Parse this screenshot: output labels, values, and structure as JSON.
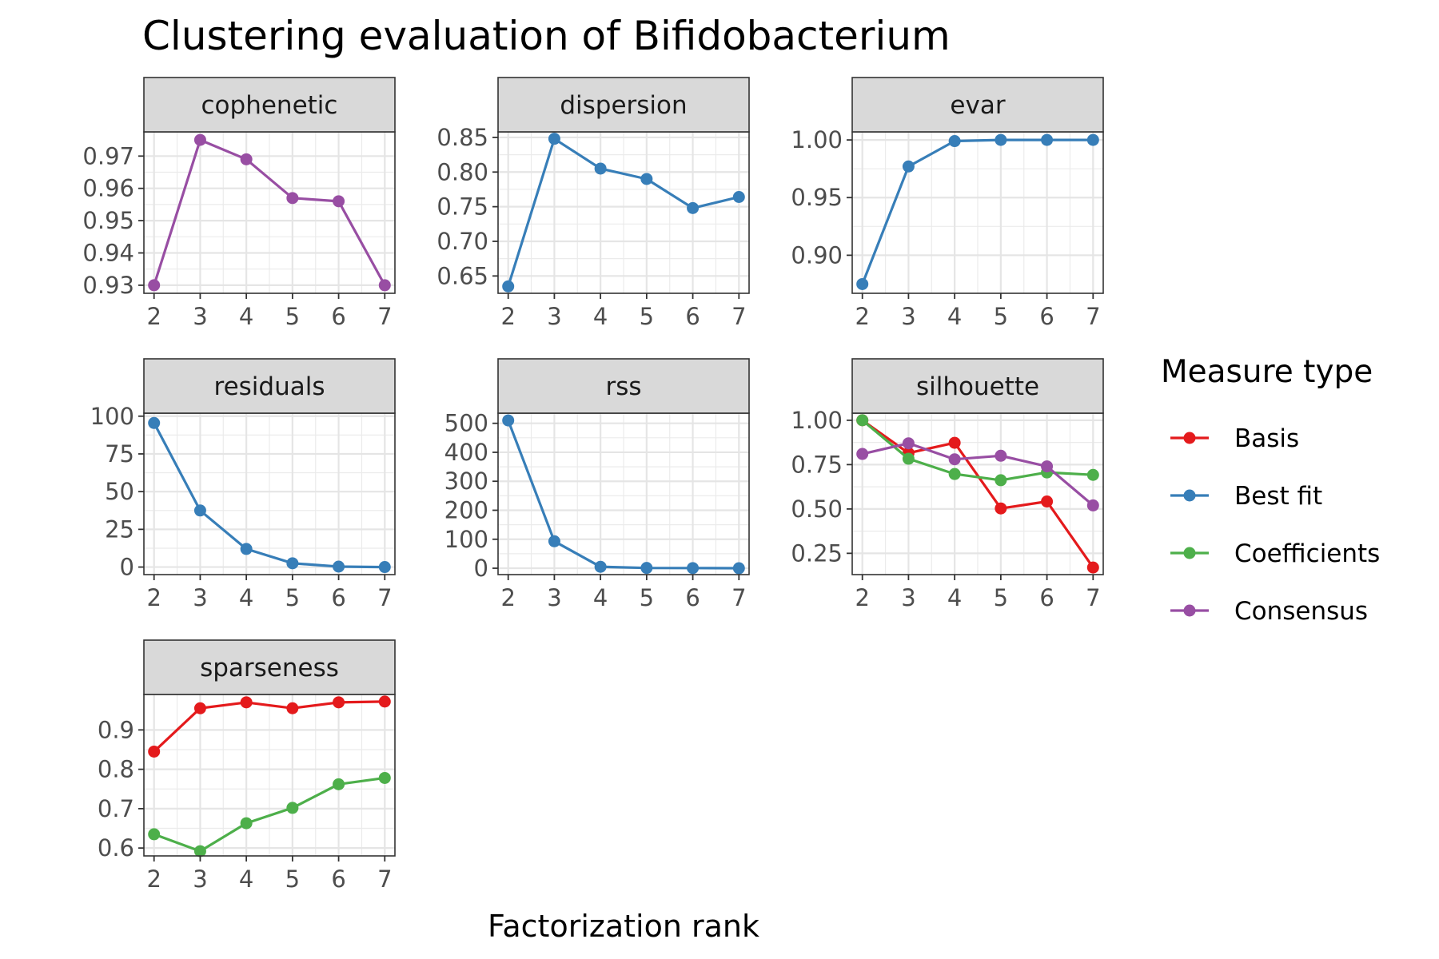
{
  "chart_data": {
    "type": "line",
    "title": "Clustering evaluation of Bifidobacterium",
    "xlabel": "Factorization rank",
    "ylabel": "",
    "x": [
      2,
      3,
      4,
      5,
      6,
      7
    ],
    "legend": {
      "title": "Measure type",
      "placement": "right",
      "items": [
        {
          "name": "Basis",
          "color": "#e41a1c"
        },
        {
          "name": "Best fit",
          "color": "#377eb8"
        },
        {
          "name": "Coefficients",
          "color": "#4daf4a"
        },
        {
          "name": "Consensus",
          "color": "#984ea3"
        }
      ]
    },
    "grid": true,
    "panels": [
      {
        "label": "cophenetic",
        "ylim": [
          0.9275,
          0.9775
        ],
        "yticks": [
          0.93,
          0.94,
          0.95,
          0.96,
          0.97
        ],
        "yticklabels": [
          "0.93",
          "0.94",
          "0.95",
          "0.96",
          "0.97"
        ],
        "series": [
          {
            "name": "Consensus",
            "values": [
              0.93,
              0.975,
              0.969,
              0.957,
              0.956,
              0.93
            ]
          }
        ]
      },
      {
        "label": "dispersion",
        "ylim": [
          0.625,
          0.858
        ],
        "yticks": [
          0.65,
          0.7,
          0.75,
          0.8,
          0.85
        ],
        "yticklabels": [
          "0.65",
          "0.70",
          "0.75",
          "0.80",
          "0.85"
        ],
        "series": [
          {
            "name": "Best fit",
            "values": [
              0.635,
              0.848,
              0.805,
              0.79,
              0.748,
              0.764
            ]
          }
        ]
      },
      {
        "label": "evar",
        "ylim": [
          0.867,
          1.007
        ],
        "yticks": [
          0.9,
          0.95,
          1.0
        ],
        "yticklabels": [
          "0.90",
          "0.95",
          "1.00"
        ],
        "series": [
          {
            "name": "Best fit",
            "values": [
              0.875,
              0.977,
              0.999,
              1.0,
              1.0,
              1.0
            ]
          }
        ]
      },
      {
        "label": "residuals",
        "ylim": [
          -5,
          102
        ],
        "yticks": [
          0,
          25,
          50,
          75,
          100
        ],
        "yticklabels": [
          "0",
          "25",
          "50",
          "75",
          "100"
        ],
        "series": [
          {
            "name": "Best fit",
            "values": [
              95.5,
              37.5,
              12,
              2.5,
              0.3,
              0
            ]
          }
        ]
      },
      {
        "label": "rss",
        "ylim": [
          -22,
          535
        ],
        "yticks": [
          0,
          100,
          200,
          300,
          400,
          500
        ],
        "yticklabels": [
          "0",
          "100",
          "200",
          "300",
          "400",
          "500"
        ],
        "series": [
          {
            "name": "Best fit",
            "values": [
              510,
              93,
              5,
              1,
              0.5,
              0
            ]
          }
        ]
      },
      {
        "label": "silhouette",
        "ylim": [
          0.13,
          1.04
        ],
        "yticks": [
          0.25,
          0.5,
          0.75,
          1.0
        ],
        "yticklabels": [
          "0.25",
          "0.50",
          "0.75",
          "1.00"
        ],
        "series": [
          {
            "name": "Basis",
            "values": [
              1.0,
              0.815,
              0.873,
              0.503,
              0.542,
              0.17
            ]
          },
          {
            "name": "Coefficients",
            "values": [
              1.0,
              0.783,
              0.697,
              0.662,
              0.706,
              0.692
            ]
          },
          {
            "name": "Consensus",
            "values": [
              0.81,
              0.87,
              0.78,
              0.8,
              0.74,
              0.52
            ]
          }
        ]
      },
      {
        "label": "sparseness",
        "ylim": [
          0.58,
          0.99
        ],
        "yticks": [
          0.6,
          0.7,
          0.8,
          0.9
        ],
        "yticklabels": [
          "0.6",
          "0.7",
          "0.8",
          "0.9"
        ],
        "series": [
          {
            "name": "Basis",
            "values": [
              0.845,
              0.955,
              0.97,
              0.955,
              0.97,
              0.972
            ]
          },
          {
            "name": "Coefficients",
            "values": [
              0.635,
              0.592,
              0.663,
              0.702,
              0.762,
              0.778
            ]
          }
        ]
      }
    ]
  }
}
